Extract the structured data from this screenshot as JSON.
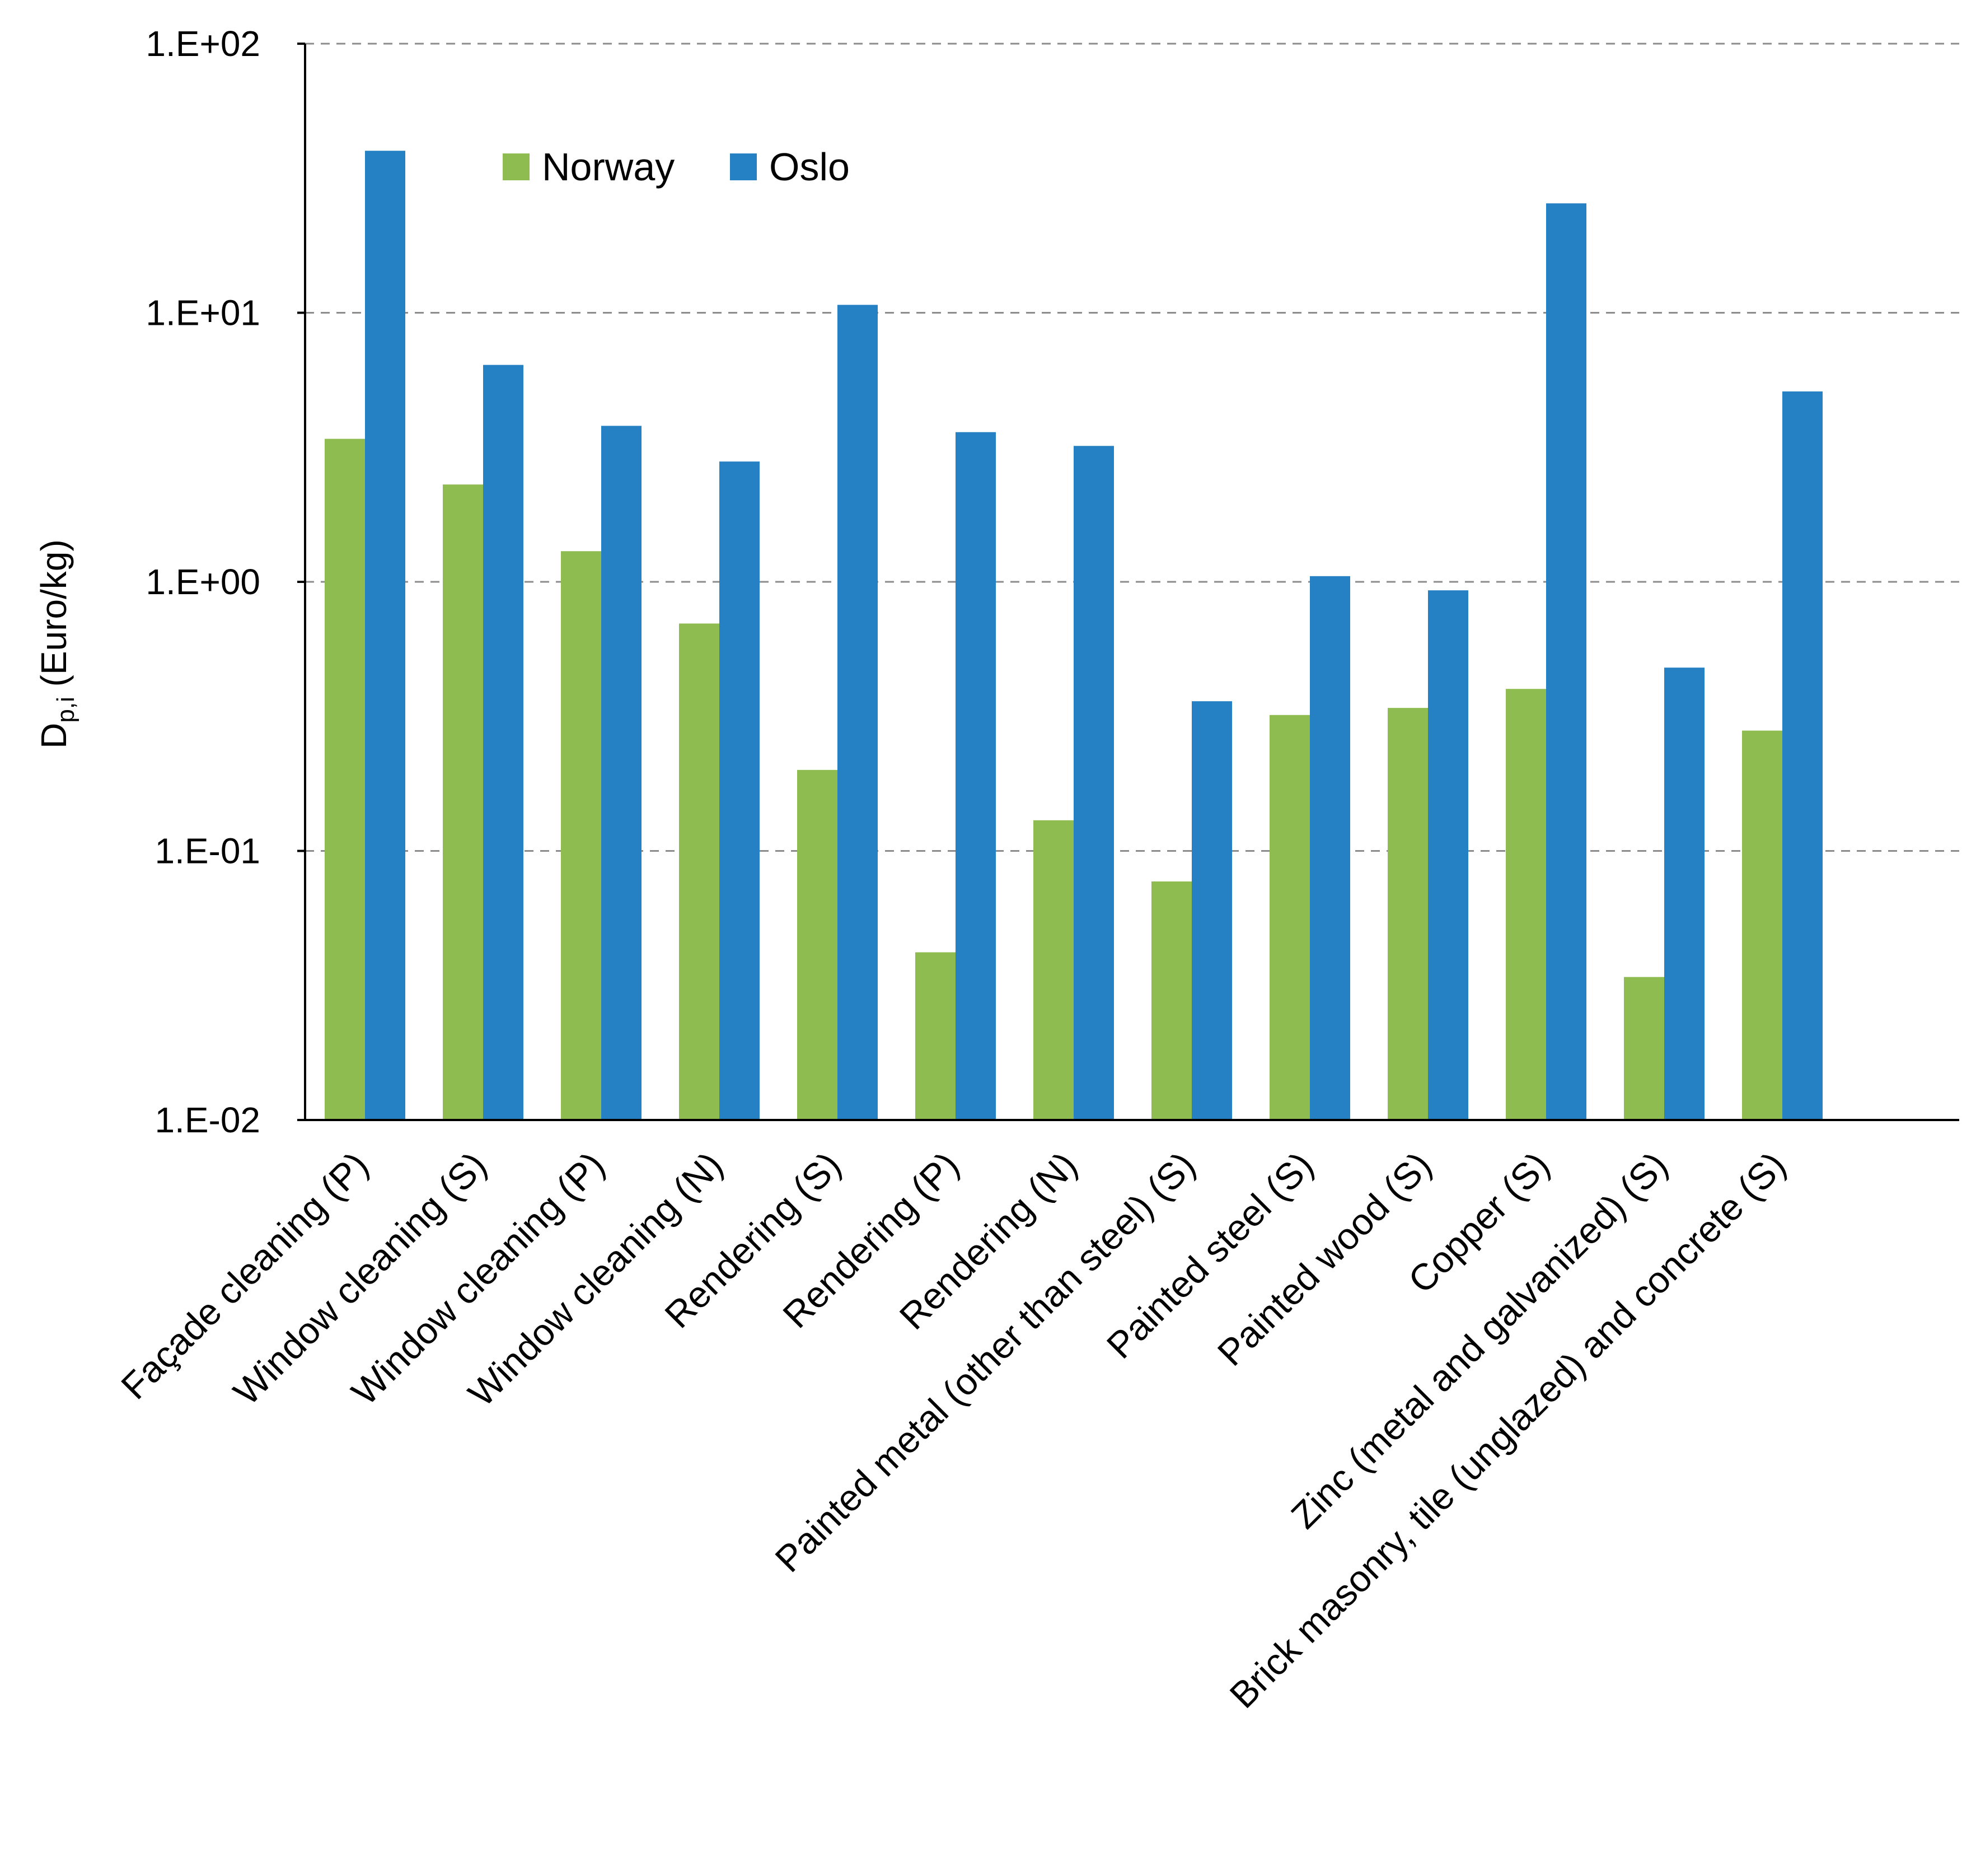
{
  "chart_data": {
    "type": "bar",
    "title": "",
    "xlabel": "",
    "ylabel_main": "D",
    "ylabel_sub": "p,i",
    "ylabel_rest": " (Euro/kg)",
    "yscale": "log",
    "ylim": [
      0.01,
      100
    ],
    "yticks": [
      0.01,
      0.1,
      1,
      10,
      100
    ],
    "ytick_labels": [
      "1.E-02",
      "1.E-01",
      "1.E+00",
      "1.E+01",
      "1.E+02"
    ],
    "grid": true,
    "legend_position": "top-left inside",
    "categories": [
      "Façade cleaning (P)",
      "Window cleaning  (S)",
      "Window cleaning  (P)",
      "Window cleaning  (N)",
      "Rendering (S)",
      "Rendering (P)",
      "Rendering (N)",
      "Painted metal (other than steel) (S)",
      "Painted steel (S)",
      "Painted wood (S)",
      "Copper (S)",
      "Zinc (metal and galvanized) (S)",
      "Brick masonry, tile (unglazed) and concrete (S)"
    ],
    "series": [
      {
        "name": "Norway",
        "color": "#8fbc50",
        "values": [
          3.4,
          2.3,
          1.3,
          0.7,
          0.2,
          0.042,
          0.13,
          0.077,
          0.32,
          0.34,
          0.4,
          0.034,
          0.28
        ]
      },
      {
        "name": "Oslo",
        "color": "#2581c4",
        "values": [
          40,
          6.4,
          3.8,
          2.8,
          10.7,
          3.6,
          3.2,
          0.36,
          1.05,
          0.93,
          25.5,
          0.48,
          5.1
        ]
      }
    ]
  }
}
